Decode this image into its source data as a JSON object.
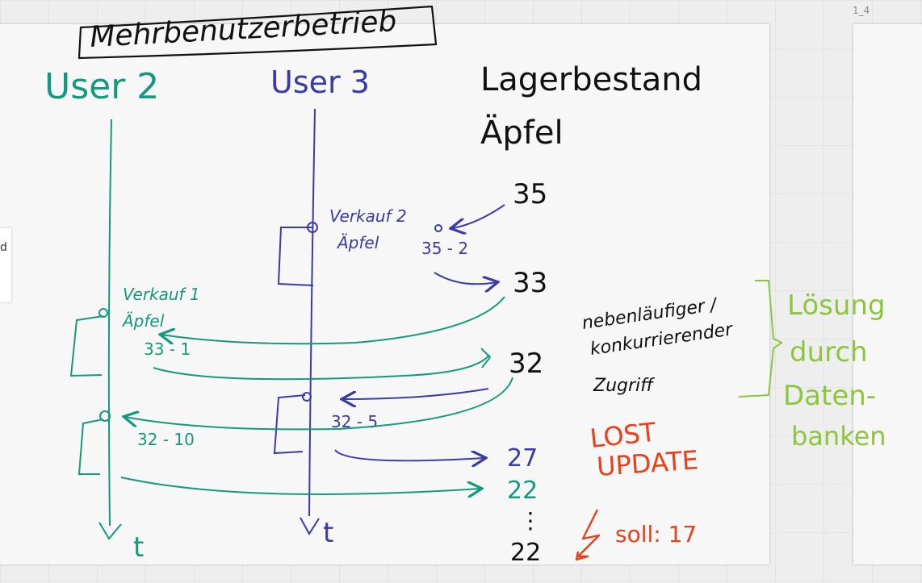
{
  "canvas": {
    "page_label": "1_4",
    "side_card_text": "d"
  },
  "diagram": {
    "title": "Mehrbenutzerbetrieb",
    "users": {
      "user2": "User 2",
      "user3": "User 3"
    },
    "time_label": "t",
    "stock_heading": {
      "line1": "Lagerbestand",
      "line2": "Äpfel"
    },
    "stock_values": {
      "v35": "35",
      "v33": "33",
      "v32": "32",
      "v27": "27",
      "v22": "22",
      "dots": "⋮",
      "v22_final": "22"
    },
    "events": {
      "sale2_line1": "Verkauf 2",
      "sale2_line2": "Äpfel",
      "calc_35_2": "35 - 2",
      "sale1_line1": "Verkauf 1",
      "sale1_line2": "Äpfel",
      "calc_33_1": "33 - 1",
      "calc_32_5": "32 - 5",
      "calc_32_10": "32 - 10"
    },
    "notes": {
      "concurrent_line1": "nebenläufiger /",
      "concurrent_line2": "konkurrierender",
      "concurrent_line3": "Zugriff",
      "lost_update_line1": "LOST",
      "lost_update_line2": "UPDATE",
      "should": "soll: 17",
      "solution_line1": "Lösung",
      "solution_line2": "durch",
      "solution_line3": "Daten-",
      "solution_line4": "banken"
    },
    "colors": {
      "black": "#111111",
      "teal": "#139a7c",
      "navy": "#3a3aa8",
      "red": "#e8401a",
      "green": "#8cc63f"
    }
  }
}
